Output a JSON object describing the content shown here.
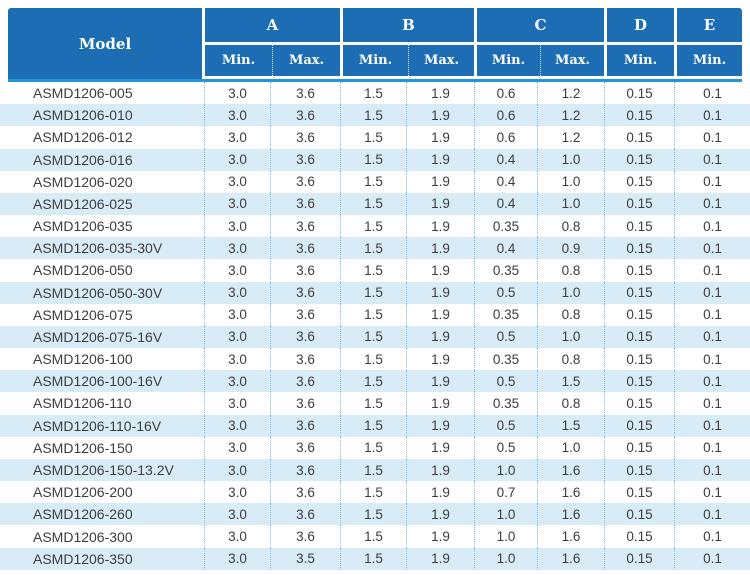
{
  "colors": {
    "header_bg": "#1c6db4",
    "accent": "#2196d3",
    "stripe": "#d8ecf8",
    "dot": "#85c1e6",
    "text": "#3d3d3d",
    "header_text": "#ffffff"
  },
  "table": {
    "columns": {
      "model_label": "Model",
      "groups": [
        {
          "label": "A",
          "subs": [
            "Min.",
            "Max."
          ]
        },
        {
          "label": "B",
          "subs": [
            "Min.",
            "Max."
          ]
        },
        {
          "label": "C",
          "subs": [
            "Min.",
            "Max."
          ]
        },
        {
          "label": "D",
          "subs": [
            "Min."
          ]
        },
        {
          "label": "E",
          "subs": [
            "Min."
          ]
        }
      ]
    },
    "rows": [
      {
        "model": "ASMD1206-005",
        "values": [
          "3.0",
          "3.6",
          "1.5",
          "1.9",
          "0.6",
          "1.2",
          "0.15",
          "0.1"
        ]
      },
      {
        "model": "ASMD1206-010",
        "values": [
          "3.0",
          "3.6",
          "1.5",
          "1.9",
          "0.6",
          "1.2",
          "0.15",
          "0.1"
        ]
      },
      {
        "model": "ASMD1206-012",
        "values": [
          "3.0",
          "3.6",
          "1.5",
          "1.9",
          "0.6",
          "1.2",
          "0.15",
          "0.1"
        ]
      },
      {
        "model": "ASMD1206-016",
        "values": [
          "3.0",
          "3.6",
          "1.5",
          "1.9",
          "0.4",
          "1.0",
          "0.15",
          "0.1"
        ]
      },
      {
        "model": "ASMD1206-020",
        "values": [
          "3.0",
          "3.6",
          "1.5",
          "1.9",
          "0.4",
          "1.0",
          "0.15",
          "0.1"
        ]
      },
      {
        "model": "ASMD1206-025",
        "values": [
          "3.0",
          "3.6",
          "1.5",
          "1.9",
          "0.4",
          "1.0",
          "0.15",
          "0.1"
        ]
      },
      {
        "model": "ASMD1206-035",
        "values": [
          "3.0",
          "3.6",
          "1.5",
          "1.9",
          "0.35",
          "0.8",
          "0.15",
          "0.1"
        ]
      },
      {
        "model": "ASMD1206-035-30V",
        "values": [
          "3.0",
          "3.6",
          "1.5",
          "1.9",
          "0.4",
          "0.9",
          "0.15",
          "0.1"
        ]
      },
      {
        "model": "ASMD1206-050",
        "values": [
          "3.0",
          "3.6",
          "1.5",
          "1.9",
          "0.35",
          "0.8",
          "0.15",
          "0.1"
        ]
      },
      {
        "model": "ASMD1206-050-30V",
        "values": [
          "3.0",
          "3.6",
          "1.5",
          "1.9",
          "0.5",
          "1.0",
          "0.15",
          "0.1"
        ]
      },
      {
        "model": "ASMD1206-075",
        "values": [
          "3.0",
          "3.6",
          "1.5",
          "1.9",
          "0.35",
          "0.8",
          "0.15",
          "0.1"
        ]
      },
      {
        "model": "ASMD1206-075-16V",
        "values": [
          "3.0",
          "3.6",
          "1.5",
          "1.9",
          "0.5",
          "1.0",
          "0.15",
          "0.1"
        ]
      },
      {
        "model": "ASMD1206-100",
        "values": [
          "3.0",
          "3.6",
          "1.5",
          "1.9",
          "0.35",
          "0.8",
          "0.15",
          "0.1"
        ]
      },
      {
        "model": "ASMD1206-100-16V",
        "values": [
          "3.0",
          "3.6",
          "1.5",
          "1.9",
          "0.5",
          "1.5",
          "0.15",
          "0.1"
        ]
      },
      {
        "model": "ASMD1206-110",
        "values": [
          "3.0",
          "3.6",
          "1.5",
          "1.9",
          "0.35",
          "0.8",
          "0.15",
          "0.1"
        ]
      },
      {
        "model": "ASMD1206-110-16V",
        "values": [
          "3.0",
          "3.6",
          "1.5",
          "1.9",
          "0.5",
          "1.5",
          "0.15",
          "0.1"
        ]
      },
      {
        "model": "ASMD1206-150",
        "values": [
          "3.0",
          "3.6",
          "1.5",
          "1.9",
          "0.5",
          "1.0",
          "0.15",
          "0.1"
        ]
      },
      {
        "model": "ASMD1206-150-13.2V",
        "values": [
          "3.0",
          "3.6",
          "1.5",
          "1.9",
          "1.0",
          "1.6",
          "0.15",
          "0.1"
        ]
      },
      {
        "model": "ASMD1206-200",
        "values": [
          "3.0",
          "3.6",
          "1.5",
          "1.9",
          "0.7",
          "1.6",
          "0.15",
          "0.1"
        ]
      },
      {
        "model": "ASMD1206-260",
        "values": [
          "3.0",
          "3.6",
          "1.5",
          "1.9",
          "1.0",
          "1.6",
          "0.15",
          "0.1"
        ]
      },
      {
        "model": "ASMD1206-300",
        "values": [
          "3.0",
          "3.6",
          "1.5",
          "1.9",
          "1.0",
          "1.6",
          "0.15",
          "0.1"
        ]
      },
      {
        "model": "ASMD1206-350",
        "values": [
          "3.0",
          "3.5",
          "1.5",
          "1.9",
          "1.0",
          "1.6",
          "0.15",
          "0.1"
        ]
      }
    ]
  }
}
